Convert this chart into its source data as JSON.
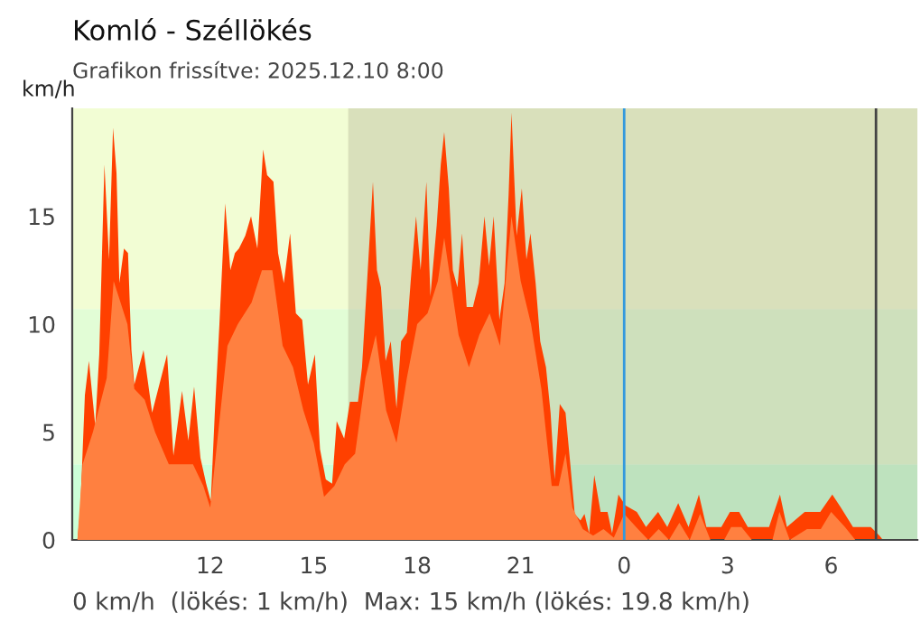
{
  "chart_data": {
    "type": "area",
    "title": "Komló - Széllökés",
    "subtitle": "Grafikon frissítve: 2025.12.10 8:00",
    "ylabel": "km/h",
    "annotations": [
      "0 km/h  (lökés: 1 km/h)  Max: 15 km/h (lökés: 19.8 km/h)"
    ],
    "xlim": [
      "2025-12-09T08:00",
      "2025-12-10T08:30"
    ],
    "ylim": [
      0,
      20
    ],
    "xticks": [
      {
        "value": "2025-12-09T12:00",
        "label": "12"
      },
      {
        "value": "2025-12-09T15:00",
        "label": "15"
      },
      {
        "value": "2025-12-09T18:00",
        "label": "18"
      },
      {
        "value": "2025-12-09T21:00",
        "label": "21"
      },
      {
        "value": "2025-12-10T00:00",
        "label": "0"
      },
      {
        "value": "2025-12-10T03:00",
        "label": "3"
      },
      {
        "value": "2025-12-10T06:00",
        "label": "6"
      }
    ],
    "yticks": [
      0,
      5,
      10,
      15
    ],
    "grid": false,
    "legend": false,
    "bands": [
      {
        "axis": "y",
        "from": 0,
        "to": 3.5,
        "color": "#ccffd8"
      },
      {
        "axis": "y",
        "from": 3.5,
        "to": 10.7,
        "color": "#e2fdd6"
      },
      {
        "axis": "y",
        "from": 10.7,
        "to": 20,
        "color": "#f2fdd4"
      },
      {
        "axis": "x",
        "from": "2025-12-09T16:00",
        "to": "2025-12-10T08:30",
        "color": "#a0a080"
      }
    ],
    "ref_lines": [
      {
        "axis": "x",
        "value": "2025-12-10T00:00",
        "color": "#3399dd"
      },
      {
        "axis": "x",
        "value": "2025-12-10T07:18",
        "color": "#444444"
      }
    ],
    "series": [
      {
        "color": "#ff4000",
        "x": [
          "2025-12-09T08:09",
          "2025-12-09T08:14",
          "2025-12-09T08:22",
          "2025-12-09T08:29",
          "2025-12-09T08:40",
          "2025-12-09T08:47",
          "2025-12-09T08:56",
          "2025-12-09T09:04",
          "2025-12-09T09:11",
          "2025-12-09T09:17",
          "2025-12-09T09:22",
          "2025-12-09T09:30",
          "2025-12-09T09:37",
          "2025-12-09T09:43",
          "2025-12-09T09:48",
          "2025-12-09T10:04",
          "2025-12-09T10:19",
          "2025-12-09T10:45",
          "2025-12-09T10:56",
          "2025-12-09T11:11",
          "2025-12-09T11:22",
          "2025-12-09T11:32",
          "2025-12-09T11:43",
          "2025-12-09T11:53",
          "2025-12-09T12:01",
          "2025-12-09T12:08",
          "2025-12-09T12:16",
          "2025-12-09T12:26",
          "2025-12-09T12:35",
          "2025-12-09T12:43",
          "2025-12-09T12:50",
          "2025-12-09T13:01",
          "2025-12-09T13:11",
          "2025-12-09T13:22",
          "2025-12-09T13:32",
          "2025-12-09T13:39",
          "2025-12-09T13:50",
          "2025-12-09T13:58",
          "2025-12-09T14:08",
          "2025-12-09T14:19",
          "2025-12-09T14:29",
          "2025-12-09T14:40",
          "2025-12-09T14:50",
          "2025-12-09T15:02",
          "2025-12-09T15:11",
          "2025-12-09T15:21",
          "2025-12-09T15:32",
          "2025-12-09T15:40",
          "2025-12-09T15:53",
          "2025-12-09T16:03",
          "2025-12-09T16:17",
          "2025-12-09T16:24",
          "2025-12-09T16:34",
          "2025-12-09T16:43",
          "2025-12-09T16:50",
          "2025-12-09T16:57",
          "2025-12-09T17:05",
          "2025-12-09T17:14",
          "2025-12-09T17:24",
          "2025-12-09T17:32",
          "2025-12-09T17:42",
          "2025-12-09T17:49",
          "2025-12-09T17:58",
          "2025-12-09T18:06",
          "2025-12-09T18:16",
          "2025-12-09T18:23",
          "2025-12-09T18:34",
          "2025-12-09T18:41",
          "2025-12-09T18:47",
          "2025-12-09T18:55",
          "2025-12-09T19:02",
          "2025-12-09T19:10",
          "2025-12-09T19:18",
          "2025-12-09T19:26",
          "2025-12-09T19:37",
          "2025-12-09T19:47",
          "2025-12-09T19:57",
          "2025-12-09T20:05",
          "2025-12-09T20:13",
          "2025-12-09T20:23",
          "2025-12-09T20:32",
          "2025-12-09T20:39",
          "2025-12-09T20:44",
          "2025-12-09T20:53",
          "2025-12-09T21:02",
          "2025-12-09T21:10",
          "2025-12-09T21:17",
          "2025-12-09T21:26",
          "2025-12-09T21:34",
          "2025-12-09T21:44",
          "2025-12-09T21:52",
          "2025-12-09T21:59",
          "2025-12-09T22:08",
          "2025-12-09T22:18",
          "2025-12-09T22:26",
          "2025-12-09T22:34",
          "2025-12-09T22:44",
          "2025-12-09T22:51",
          "2025-12-09T22:59",
          "2025-12-09T23:08",
          "2025-12-09T23:19",
          "2025-12-09T23:31",
          "2025-12-09T23:39",
          "2025-12-09T23:50",
          "2025-12-10T00:02",
          "2025-12-10T00:22",
          "2025-12-10T00:38",
          "2025-12-10T00:59",
          "2025-12-10T01:15",
          "2025-12-10T01:34",
          "2025-12-10T01:52",
          "2025-12-10T02:10",
          "2025-12-10T02:23",
          "2025-12-10T02:49",
          "2025-12-10T03:04",
          "2025-12-10T03:20",
          "2025-12-10T03:35",
          "2025-12-10T04:12",
          "2025-12-10T04:31",
          "2025-12-10T04:43",
          "2025-12-10T05:14",
          "2025-12-10T05:41",
          "2025-12-10T06:02",
          "2025-12-10T06:17",
          "2025-12-10T06:38",
          "2025-12-10T07:09",
          "2025-12-10T07:24",
          "2025-12-10T07:30"
        ],
        "values": [
          0,
          1.4,
          6.7,
          8.3,
          5.3,
          8.6,
          17.4,
          13,
          19.1,
          17,
          11.9,
          13.5,
          13.3,
          8.8,
          7.2,
          8.8,
          5.9,
          8.6,
          3.9,
          6.9,
          4.6,
          7.1,
          3.8,
          2.6,
          1.8,
          5.9,
          10,
          15.6,
          12.5,
          13.3,
          13.5,
          14.1,
          15,
          13.5,
          18.1,
          16.9,
          16.6,
          13.3,
          11.9,
          14.2,
          10.5,
          10.2,
          7.2,
          8.6,
          4.2,
          2.8,
          2.6,
          5.5,
          4.7,
          6.4,
          6.4,
          8,
          12.5,
          16.6,
          12.5,
          11.7,
          8.3,
          9.2,
          6.1,
          9.2,
          9.6,
          12.1,
          15,
          12.5,
          16.6,
          11.3,
          14.6,
          17.4,
          18.9,
          16.3,
          12.5,
          11.7,
          14.2,
          10.8,
          10.8,
          11.9,
          15,
          12.7,
          15,
          10.2,
          11.9,
          16,
          19.8,
          14.1,
          16.3,
          13,
          14.2,
          11.9,
          9.2,
          8,
          5.9,
          2.8,
          6.3,
          5.9,
          3.6,
          1.2,
          0.9,
          1.2,
          0.3,
          3,
          1.3,
          1.3,
          0.3,
          2.1,
          1.6,
          1.3,
          0.6,
          1.3,
          0.6,
          1.7,
          0.6,
          2.1,
          0.6,
          0.6,
          1.3,
          1.3,
          0.6,
          0.6,
          2.1,
          0.6,
          1.3,
          1.3,
          2.1,
          1.5,
          0.6,
          0.6,
          0.2,
          0
        ]
      },
      {
        "color": "#ff8040",
        "x": [
          "2025-12-09T08:09",
          "2025-12-09T08:18",
          "2025-12-09T08:36",
          "2025-12-09T09:00",
          "2025-12-09T09:12",
          "2025-12-09T09:24",
          "2025-12-09T09:36",
          "2025-12-09T09:48",
          "2025-12-09T10:06",
          "2025-12-09T10:24",
          "2025-12-09T10:48",
          "2025-12-09T11:12",
          "2025-12-09T11:30",
          "2025-12-09T11:48",
          "2025-12-09T12:00",
          "2025-12-09T12:12",
          "2025-12-09T12:30",
          "2025-12-09T12:48",
          "2025-12-09T13:00",
          "2025-12-09T13:12",
          "2025-12-09T13:30",
          "2025-12-09T13:48",
          "2025-12-09T14:06",
          "2025-12-09T14:24",
          "2025-12-09T14:42",
          "2025-12-09T15:00",
          "2025-12-09T15:18",
          "2025-12-09T15:36",
          "2025-12-09T15:54",
          "2025-12-09T16:12",
          "2025-12-09T16:30",
          "2025-12-09T16:48",
          "2025-12-09T17:06",
          "2025-12-09T17:24",
          "2025-12-09T17:42",
          "2025-12-09T18:00",
          "2025-12-09T18:18",
          "2025-12-09T18:36",
          "2025-12-09T18:47",
          "2025-12-09T19:12",
          "2025-12-09T19:30",
          "2025-12-09T19:48",
          "2025-12-09T20:06",
          "2025-12-09T20:24",
          "2025-12-09T20:44",
          "2025-12-09T21:00",
          "2025-12-09T21:18",
          "2025-12-09T21:36",
          "2025-12-09T21:54",
          "2025-12-09T22:06",
          "2025-12-09T22:18",
          "2025-12-09T22:30",
          "2025-12-09T22:48",
          "2025-12-09T23:06",
          "2025-12-09T23:24",
          "2025-12-09T23:42",
          "2025-12-10T00:00",
          "2025-12-10T00:24",
          "2025-12-10T00:42",
          "2025-12-10T01:00",
          "2025-12-10T01:18",
          "2025-12-10T01:36",
          "2025-12-10T01:54",
          "2025-12-10T02:12",
          "2025-12-10T02:30",
          "2025-12-10T02:54",
          "2025-12-10T03:06",
          "2025-12-10T03:24",
          "2025-12-10T03:42",
          "2025-12-10T04:18",
          "2025-12-10T04:30",
          "2025-12-10T04:48",
          "2025-12-10T05:18",
          "2025-12-10T05:42",
          "2025-12-10T06:00",
          "2025-12-10T06:24",
          "2025-12-10T06:42",
          "2025-12-10T07:12",
          "2025-12-10T07:30",
          "2025-12-10T08:18"
        ],
        "values": [
          0,
          3.5,
          5,
          7.5,
          12,
          11,
          10,
          7,
          6.5,
          5,
          3.5,
          3.5,
          3.5,
          2.5,
          1.5,
          4.5,
          9,
          10,
          10.5,
          11,
          12.5,
          12.5,
          9,
          8,
          6,
          4.5,
          2,
          2.5,
          3.5,
          4,
          7.5,
          9.5,
          6,
          4.5,
          7.5,
          10,
          10.5,
          12,
          14,
          9.5,
          8,
          9.5,
          10.5,
          9,
          15,
          12,
          10,
          7,
          2.5,
          2.5,
          4,
          1.5,
          0.5,
          0.2,
          0.5,
          0.1,
          1.2,
          0.5,
          0,
          0.5,
          0,
          0.8,
          0,
          1.2,
          0,
          0,
          0.6,
          0.6,
          0,
          0,
          1.3,
          0,
          0.5,
          0.5,
          1.3,
          0.6,
          0,
          0,
          0,
          0
        ]
      }
    ]
  }
}
